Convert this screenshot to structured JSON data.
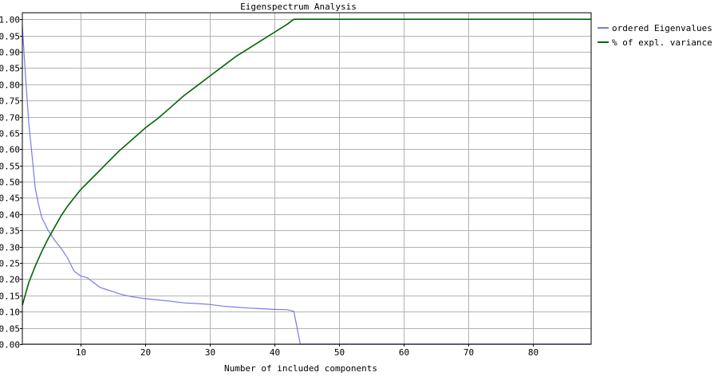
{
  "chart_data": {
    "type": "line",
    "title": "Eigenspectrum Analysis",
    "xlabel": "Number of included components",
    "ylabel": "",
    "xlim": [
      1,
      89
    ],
    "ylim": [
      0,
      1.02
    ],
    "x_ticks": [
      10,
      20,
      30,
      40,
      50,
      60,
      70,
      80
    ],
    "y_ticks": [
      0.0,
      0.05,
      0.1,
      0.15,
      0.2,
      0.25,
      0.3,
      0.35,
      0.4,
      0.45,
      0.5,
      0.55,
      0.6,
      0.65,
      0.7,
      0.75,
      0.8,
      0.85,
      0.9,
      0.95,
      1.0
    ],
    "y_tick_labels": [
      "0.00",
      "0.05",
      "0.10",
      "0.15",
      "0.20",
      "0.25",
      "0.30",
      "0.35",
      "0.40",
      "0.45",
      "0.50",
      "0.55",
      "0.60",
      "0.65",
      "0.70",
      "0.75",
      "0.80",
      "0.85",
      "0.90",
      "0.95",
      "1.00"
    ],
    "grid": true,
    "legend_position": "right",
    "series": [
      {
        "name": "ordered Eigenvalues",
        "color": "#7a7ae6",
        "points": [
          [
            1,
            0.98
          ],
          [
            1.5,
            0.82
          ],
          [
            2,
            0.68
          ],
          [
            2.5,
            0.58
          ],
          [
            3,
            0.48
          ],
          [
            3.5,
            0.43
          ],
          [
            4,
            0.39
          ],
          [
            5,
            0.35
          ],
          [
            6,
            0.32
          ],
          [
            7,
            0.295
          ],
          [
            8,
            0.265
          ],
          [
            9,
            0.225
          ],
          [
            10,
            0.21
          ],
          [
            11,
            0.205
          ],
          [
            12,
            0.19
          ],
          [
            13,
            0.175
          ],
          [
            14,
            0.168
          ],
          [
            15,
            0.162
          ],
          [
            16,
            0.155
          ],
          [
            17,
            0.15
          ],
          [
            18,
            0.146
          ],
          [
            19,
            0.143
          ],
          [
            20,
            0.14
          ],
          [
            22,
            0.136
          ],
          [
            24,
            0.132
          ],
          [
            26,
            0.127
          ],
          [
            28,
            0.125
          ],
          [
            30,
            0.122
          ],
          [
            32,
            0.117
          ],
          [
            34,
            0.114
          ],
          [
            36,
            0.111
          ],
          [
            38,
            0.109
          ],
          [
            40,
            0.107
          ],
          [
            42,
            0.106
          ],
          [
            43,
            0.101
          ],
          [
            44,
            0.0
          ],
          [
            89,
            0.0
          ]
        ]
      },
      {
        "name": "% of expl. variance",
        "color": "#006600",
        "points": [
          [
            1,
            0.12
          ],
          [
            2,
            0.19
          ],
          [
            3,
            0.24
          ],
          [
            4,
            0.285
          ],
          [
            5,
            0.325
          ],
          [
            6,
            0.36
          ],
          [
            7,
            0.395
          ],
          [
            8,
            0.425
          ],
          [
            9,
            0.45
          ],
          [
            10,
            0.475
          ],
          [
            12,
            0.515
          ],
          [
            14,
            0.555
          ],
          [
            16,
            0.595
          ],
          [
            18,
            0.63
          ],
          [
            20,
            0.665
          ],
          [
            22,
            0.695
          ],
          [
            24,
            0.73
          ],
          [
            26,
            0.765
          ],
          [
            28,
            0.795
          ],
          [
            30,
            0.825
          ],
          [
            32,
            0.855
          ],
          [
            34,
            0.885
          ],
          [
            36,
            0.91
          ],
          [
            38,
            0.935
          ],
          [
            40,
            0.96
          ],
          [
            42,
            0.985
          ],
          [
            43,
            1.0
          ],
          [
            89,
            1.0
          ]
        ]
      }
    ]
  }
}
